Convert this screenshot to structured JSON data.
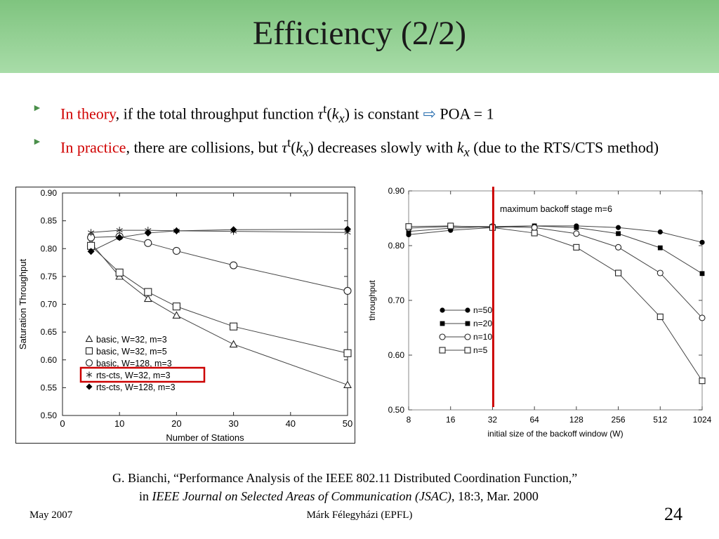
{
  "slide": {
    "title": "Efficiency (2/2)",
    "bullets": [
      {
        "red": "In theory",
        "pre": ", if the total throughput function ",
        "tau": "τ",
        "sup": "t",
        "paren1": "(",
        "k": "k",
        "sub": "x",
        "paren2": ")",
        "post": " is constant ",
        "arrow": "⇨",
        "end": " POA = 1"
      },
      {
        "red": "In practice",
        "pre": ", there are collisions, but ",
        "tau": "τ",
        "sup": "t",
        "paren1": "(",
        "k": "k",
        "sub": "x",
        "paren2": ")",
        "mid": " decreases slowly with ",
        "k2": "k",
        "sub2": "x",
        "post": " (due to the RTS/CTS method)"
      }
    ],
    "citation": {
      "line1": "G. Bianchi, “Performance Analysis of the IEEE 802.11 Distributed Coordination Function,”",
      "line2_pre": "in ",
      "line2_journal": "IEEE Journal on Selected Areas of Communication (JSAC)",
      "line2_post": ", 18:3, Mar. 2000"
    },
    "footer": {
      "left": "May 2007",
      "center": "Márk Félegyházi (EPFL)",
      "page": "24"
    }
  },
  "chart_data": [
    {
      "type": "line",
      "xlabel": "Number of Stations",
      "ylabel": "Saturation Throughput",
      "xlim": [
        0,
        50
      ],
      "ylim": [
        0.5,
        0.9
      ],
      "xticks": [
        0,
        10,
        20,
        30,
        40,
        50
      ],
      "yticks": [
        "0.50",
        "0.55",
        "0.60",
        "0.65",
        "0.70",
        "0.75",
        "0.80",
        "0.85",
        "0.90"
      ],
      "x": [
        5,
        10,
        15,
        20,
        30,
        50
      ],
      "highlight_color": "#cc0000",
      "highlight_series": 3,
      "legend_position": "bottom-left",
      "series": [
        {
          "name": "basic, W=32, m=3",
          "marker": "triangle",
          "values": [
            0.81,
            0.75,
            0.71,
            0.68,
            0.628,
            0.555
          ]
        },
        {
          "name": "basic, W=32, m=5",
          "marker": "square",
          "values": [
            0.805,
            0.757,
            0.722,
            0.696,
            0.66,
            0.612
          ]
        },
        {
          "name": "basic, W=128, m=3",
          "marker": "circle",
          "values": [
            0.82,
            0.822,
            0.81,
            0.796,
            0.77,
            0.724
          ]
        },
        {
          "name": "rts-cts, W=32, m=3",
          "marker": "asterisk",
          "values": [
            0.829,
            0.833,
            0.833,
            0.832,
            0.831,
            0.829
          ]
        },
        {
          "name": "rts-cts, W=128, m=3",
          "marker": "diamond",
          "values": [
            0.795,
            0.82,
            0.828,
            0.832,
            0.834,
            0.835
          ]
        }
      ]
    },
    {
      "type": "line",
      "xlabel": "initial size of the backoff window (W)",
      "ylabel": "throughput",
      "annotation": "maximum backoff stage m=6",
      "categories": [
        "8",
        "16",
        "32",
        "64",
        "128",
        "256",
        "512",
        "1024"
      ],
      "ylim": [
        0.5,
        0.9
      ],
      "yticks": [
        "0.50",
        "0.60",
        "0.70",
        "0.80",
        "0.90"
      ],
      "vertical_marker": {
        "at": "32",
        "color": "#cc0000"
      },
      "legend_position": "center-left",
      "series": [
        {
          "name": "n=50",
          "marker": "filled-circle",
          "values": [
            0.82,
            0.828,
            0.833,
            0.836,
            0.836,
            0.833,
            0.825,
            0.806
          ]
        },
        {
          "name": "n=20",
          "marker": "filled-square",
          "values": [
            0.826,
            0.832,
            0.835,
            0.836,
            0.833,
            0.822,
            0.796,
            0.749
          ]
        },
        {
          "name": "n=10",
          "marker": "open-circle",
          "values": [
            0.832,
            0.835,
            0.835,
            0.833,
            0.822,
            0.797,
            0.75,
            0.668
          ]
        },
        {
          "name": "n=5",
          "marker": "open-square",
          "values": [
            0.835,
            0.836,
            0.833,
            0.823,
            0.797,
            0.75,
            0.67,
            0.553
          ]
        }
      ]
    }
  ]
}
